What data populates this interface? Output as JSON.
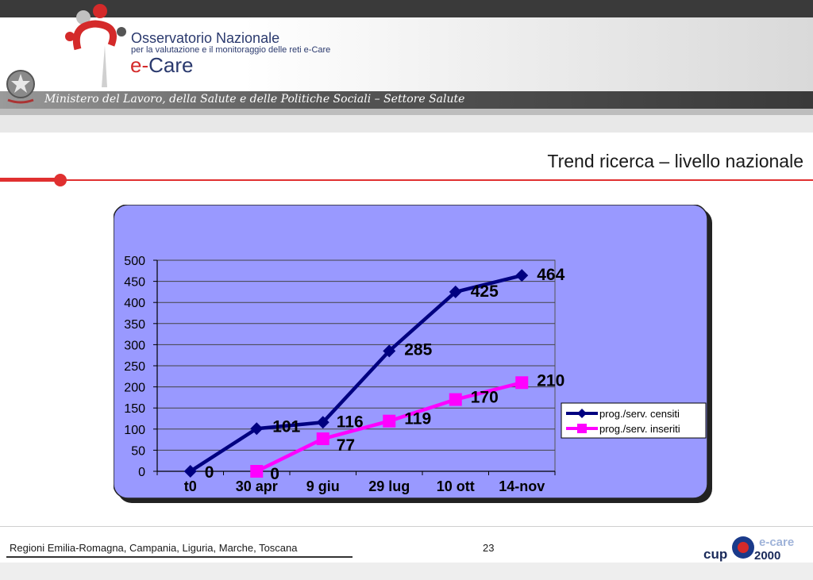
{
  "header": {
    "org_title": "Osservatorio Nazionale",
    "org_subtitle": "per la valutazione e il monitoraggio delle reti e-Care",
    "brand_prefix": "e-",
    "brand_suffix": "Care",
    "ministry": "Ministero del Lavoro, della Salute e delle Politiche Sociali – Settore Salute"
  },
  "slide": {
    "title": "Trend ricerca – livello nazionale"
  },
  "footer": {
    "regions": "Regioni Emilia-Romagna, Campania, Liguria, Marche, Toscana",
    "page_number": "23",
    "logo_left": "cup",
    "logo_top": "e-care",
    "logo_bottom": "2000"
  },
  "colors": {
    "plot_background": "#9999ff",
    "series_censiti": "#000080",
    "series_inseriti": "#ff00ff",
    "accent_red": "#e03030"
  },
  "chart_data": {
    "type": "line",
    "categories": [
      "t0",
      "30 apr",
      "9 giu",
      "29 lug",
      "10 ott",
      "14-nov"
    ],
    "ylim": [
      0,
      500
    ],
    "yticks": [
      "0",
      "50",
      "100",
      "150",
      "200",
      "250",
      "300",
      "350",
      "400",
      "450",
      "500"
    ],
    "grid": true,
    "legend": "right",
    "series": [
      {
        "name": "prog./serv. censiti",
        "marker": "diamond",
        "values": [
          0,
          101,
          116,
          285,
          425,
          464
        ]
      },
      {
        "name": "prog./serv. inseriti",
        "marker": "square",
        "values": [
          null,
          0,
          77,
          119,
          170,
          210
        ]
      }
    ]
  }
}
